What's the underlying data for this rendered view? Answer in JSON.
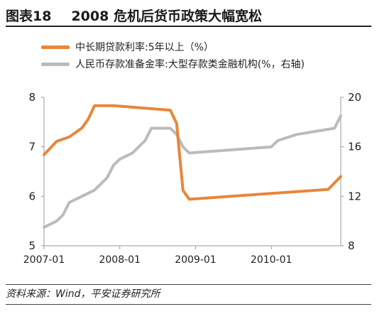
{
  "header": {
    "figure_no": "图表18",
    "title": "2008 危机后货币政策大幅宽松"
  },
  "footer": {
    "source": "资料来源：Wind，平安证券研究所"
  },
  "colors": {
    "series_lending": "#E8863A",
    "series_rrr": "#BBBBBB",
    "axis": "#9A9A9A",
    "text": "#222222"
  },
  "chart_data": {
    "type": "line",
    "legend_position": "top-left",
    "grid": false,
    "x_axis": {
      "range": [
        "2007-01",
        "2010-12"
      ],
      "ticks": [
        "2007-01",
        "2008-01",
        "2009-01",
        "2010-01"
      ]
    },
    "y_left": {
      "range": [
        5,
        8
      ],
      "ticks": [
        5,
        6,
        7,
        8
      ]
    },
    "y_right": {
      "range": [
        8,
        20
      ],
      "ticks": [
        8,
        12,
        16,
        20
      ]
    },
    "series": [
      {
        "name": "中长期贷款利率:5年以上（%）",
        "axis": "left",
        "points": [
          [
            "2007-01",
            6.84
          ],
          [
            "2007-03",
            7.11
          ],
          [
            "2007-05",
            7.2
          ],
          [
            "2007-07",
            7.38
          ],
          [
            "2007-08",
            7.56
          ],
          [
            "2007-09",
            7.83
          ],
          [
            "2007-12",
            7.83
          ],
          [
            "2008-09",
            7.74
          ],
          [
            "2008-10",
            7.47
          ],
          [
            "2008-11",
            6.12
          ],
          [
            "2008-12",
            5.94
          ],
          [
            "2010-10",
            6.14
          ],
          [
            "2010-12",
            6.4
          ]
        ]
      },
      {
        "name": "人民币存款准备金率:大型存款类金融机构(%，右轴)",
        "axis": "right",
        "points": [
          [
            "2007-01",
            9.5
          ],
          [
            "2007-03",
            10.0
          ],
          [
            "2007-04",
            10.5
          ],
          [
            "2007-05",
            11.5
          ],
          [
            "2007-07",
            12.0
          ],
          [
            "2007-09",
            12.5
          ],
          [
            "2007-10",
            13.0
          ],
          [
            "2007-11",
            13.5
          ],
          [
            "2007-12",
            14.5
          ],
          [
            "2008-01",
            15.0
          ],
          [
            "2008-03",
            15.5
          ],
          [
            "2008-04",
            16.0
          ],
          [
            "2008-05",
            16.5
          ],
          [
            "2008-06",
            17.5
          ],
          [
            "2008-09",
            17.5
          ],
          [
            "2008-10",
            17.0
          ],
          [
            "2008-11",
            16.0
          ],
          [
            "2008-12",
            15.5
          ],
          [
            "2010-01",
            16.0
          ],
          [
            "2010-02",
            16.5
          ],
          [
            "2010-05",
            17.0
          ],
          [
            "2010-11",
            17.5
          ],
          [
            "2010-12",
            18.5
          ]
        ]
      }
    ]
  }
}
